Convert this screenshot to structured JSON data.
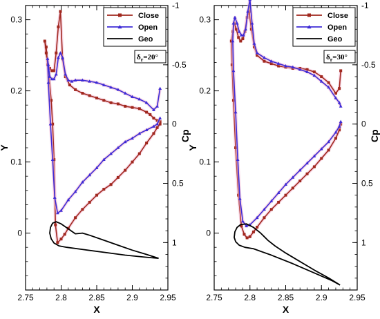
{
  "chart_data": [
    {
      "type": "line",
      "panel": "left",
      "xlabel": "X",
      "ylabel": "Y",
      "y2label": "Cp",
      "xlim": [
        2.75,
        2.95
      ],
      "ylim": [
        -0.08,
        0.32
      ],
      "y2lim": [
        1.4,
        -1.0
      ],
      "xticks": [
        "2.75",
        "2.8",
        "2.85",
        "2.9",
        "2.95"
      ],
      "yticks": [
        "0",
        "0.1",
        "0.2",
        "0.3"
      ],
      "y2ticks": [
        "-1",
        "-0.5",
        "0",
        "0.5",
        "1"
      ],
      "annotation": {
        "main": "δ",
        "sub": "r",
        "rest": "=20°"
      },
      "legend_position": "top-right",
      "series": [
        {
          "name": "Close",
          "color": "#a0281e",
          "marker": "square",
          "axis": "cp",
          "x": [
            2.939,
            2.935,
            2.93,
            2.925,
            2.92,
            2.91,
            2.9,
            2.89,
            2.88,
            2.87,
            2.86,
            2.85,
            2.84,
            2.83,
            2.82,
            2.812,
            2.806,
            2.802,
            2.799,
            2.796,
            2.793,
            2.79,
            2.787,
            2.784,
            2.781,
            2.779,
            2.777,
            2.779,
            2.783,
            2.786,
            2.788,
            2.79,
            2.792,
            2.795,
            2.8,
            2.805,
            2.81,
            2.82,
            2.83,
            2.84,
            2.85,
            2.86,
            2.87,
            2.88,
            2.89,
            2.9,
            2.91,
            2.92,
            2.93,
            2.935,
            2.939
          ],
          "y": [
            -0.02,
            -0.03,
            -0.05,
            -0.08,
            -0.1,
            -0.13,
            -0.14,
            -0.15,
            -0.17,
            -0.18,
            -0.2,
            -0.22,
            -0.24,
            -0.26,
            -0.29,
            -0.33,
            -0.4,
            -0.55,
            -0.95,
            -0.82,
            -0.6,
            -0.45,
            -0.45,
            -0.47,
            -0.5,
            -0.65,
            -0.7,
            -0.6,
            -0.4,
            -0.2,
            0.0,
            0.3,
            0.85,
            1.0,
            0.97,
            0.93,
            0.88,
            0.79,
            0.72,
            0.66,
            0.6,
            0.55,
            0.51,
            0.45,
            0.39,
            0.32,
            0.25,
            0.16,
            0.08,
            0.03,
            0.0
          ]
        },
        {
          "name": "Open",
          "color": "#3d2bd6",
          "marker": "triangle",
          "axis": "cp",
          "x": [
            2.939,
            2.935,
            2.93,
            2.92,
            2.91,
            2.9,
            2.89,
            2.88,
            2.87,
            2.86,
            2.85,
            2.84,
            2.83,
            2.82,
            2.815,
            2.81,
            2.806,
            2.802,
            2.799,
            2.796,
            2.793,
            2.79,
            2.787,
            2.784,
            2.782,
            2.781,
            2.782,
            2.785,
            2.788,
            2.791,
            2.795,
            2.8,
            2.81,
            2.82,
            2.83,
            2.84,
            2.85,
            2.86,
            2.87,
            2.88,
            2.89,
            2.9,
            2.91,
            2.92,
            2.93,
            2.935,
            2.939
          ],
          "y": [
            -0.3,
            -0.15,
            -0.12,
            -0.18,
            -0.21,
            -0.23,
            -0.26,
            -0.29,
            -0.31,
            -0.33,
            -0.35,
            -0.36,
            -0.37,
            -0.37,
            -0.36,
            -0.37,
            -0.42,
            -0.56,
            -0.6,
            -0.56,
            -0.42,
            -0.38,
            -0.38,
            -0.4,
            -0.5,
            -0.55,
            -0.35,
            0.0,
            0.3,
            0.62,
            0.75,
            0.73,
            0.64,
            0.57,
            0.49,
            0.43,
            0.37,
            0.3,
            0.25,
            0.2,
            0.15,
            0.12,
            0.08,
            0.05,
            0.02,
            0.0,
            -0.05
          ]
        },
        {
          "name": "Geo",
          "color": "#000000",
          "marker": "none",
          "axis": "y",
          "x": [
            2.937,
            2.92,
            2.9,
            2.88,
            2.86,
            2.84,
            2.83,
            2.82,
            2.81,
            2.8,
            2.793,
            2.788,
            2.785,
            2.784,
            2.786,
            2.79,
            2.797,
            2.808,
            2.83,
            2.86,
            2.89,
            2.92,
            2.937
          ],
          "y": [
            -0.0355,
            -0.03,
            -0.024,
            -0.017,
            -0.01,
            -0.003,
            0.0,
            -0.001,
            0.006,
            0.013,
            0.016,
            0.014,
            0.008,
            0.0,
            -0.008,
            -0.014,
            -0.018,
            -0.02,
            -0.023,
            -0.027,
            -0.031,
            -0.034,
            -0.0355
          ]
        }
      ]
    },
    {
      "type": "line",
      "panel": "right",
      "xlabel": "X",
      "ylabel": "Y",
      "y2label": "Cp",
      "xlim": [
        2.75,
        2.95
      ],
      "ylim": [
        -0.08,
        0.32
      ],
      "y2lim": [
        1.4,
        -1.0
      ],
      "xticks": [
        "2.75",
        "2.8",
        "2.85",
        "2.9",
        "2.95"
      ],
      "yticks": [
        "0",
        "0.1",
        "0.2",
        "0.3"
      ],
      "y2ticks": [
        "-1",
        "-0.5",
        "0",
        "0.5",
        "1"
      ],
      "annotation": {
        "main": "δ",
        "sub": "r",
        "rest": "=30°"
      },
      "legend_position": "top-right",
      "series": [
        {
          "name": "Close",
          "color": "#a0281e",
          "marker": "square",
          "axis": "cp",
          "x": [
            2.927,
            2.925,
            2.92,
            2.91,
            2.9,
            2.89,
            2.88,
            2.87,
            2.86,
            2.85,
            2.84,
            2.83,
            2.82,
            2.81,
            2.806,
            2.802,
            2.799,
            2.796,
            2.793,
            2.79,
            2.787,
            2.784,
            2.781,
            2.778,
            2.776,
            2.774,
            2.775,
            2.777,
            2.78,
            2.784,
            2.788,
            2.792,
            2.796,
            2.8,
            2.805,
            2.81,
            2.82,
            2.83,
            2.84,
            2.85,
            2.86,
            2.87,
            2.88,
            2.89,
            2.9,
            2.91,
            2.92,
            2.925,
            2.927
          ],
          "y": [
            -0.45,
            -0.3,
            -0.26,
            -0.35,
            -0.4,
            -0.44,
            -0.46,
            -0.47,
            -0.47,
            -0.48,
            -0.49,
            -0.51,
            -0.53,
            -0.58,
            -0.65,
            -0.8,
            -0.95,
            -0.9,
            -0.78,
            -0.72,
            -0.7,
            -0.73,
            -0.8,
            -0.85,
            -0.78,
            -0.7,
            -0.5,
            -0.2,
            0.2,
            0.6,
            0.86,
            0.93,
            0.96,
            0.95,
            0.91,
            0.87,
            0.79,
            0.72,
            0.66,
            0.6,
            0.54,
            0.48,
            0.42,
            0.36,
            0.29,
            0.22,
            0.12,
            0.05,
            0.0
          ]
        },
        {
          "name": "Open",
          "color": "#3d2bd6",
          "marker": "triangle",
          "axis": "cp",
          "x": [
            2.927,
            2.925,
            2.92,
            2.91,
            2.9,
            2.89,
            2.88,
            2.87,
            2.86,
            2.85,
            2.84,
            2.83,
            2.82,
            2.81,
            2.806,
            2.803,
            2.8,
            2.797,
            2.794,
            2.791,
            2.788,
            2.785,
            2.782,
            2.779,
            2.777,
            2.776,
            2.777,
            2.78,
            2.783,
            2.786,
            2.79,
            2.795,
            2.8,
            2.81,
            2.82,
            2.83,
            2.84,
            2.85,
            2.86,
            2.87,
            2.88,
            2.89,
            2.9,
            2.91,
            2.92,
            2.925,
            2.927
          ],
          "y": [
            -0.15,
            -0.18,
            -0.22,
            -0.31,
            -0.36,
            -0.41,
            -0.44,
            -0.46,
            -0.48,
            -0.49,
            -0.51,
            -0.53,
            -0.56,
            -0.6,
            -0.68,
            -0.85,
            -1.05,
            -0.95,
            -0.8,
            -0.75,
            -0.75,
            -0.78,
            -0.85,
            -0.9,
            -0.85,
            -0.7,
            -0.45,
            -0.1,
            0.3,
            0.63,
            0.82,
            0.86,
            0.85,
            0.79,
            0.72,
            0.65,
            0.58,
            0.51,
            0.45,
            0.39,
            0.33,
            0.27,
            0.21,
            0.15,
            0.07,
            0.02,
            -0.02
          ]
        },
        {
          "name": "Geo",
          "color": "#000000",
          "marker": "none",
          "axis": "y",
          "x": [
            2.926,
            2.91,
            2.89,
            2.87,
            2.85,
            2.835,
            2.825,
            2.815,
            2.805,
            2.795,
            2.787,
            2.782,
            2.779,
            2.778,
            2.78,
            2.785,
            2.793,
            2.805,
            2.83,
            2.86,
            2.89,
            2.915,
            2.926
          ],
          "y": [
            -0.073,
            -0.063,
            -0.052,
            -0.04,
            -0.028,
            -0.018,
            -0.01,
            0.0,
            0.008,
            0.013,
            0.012,
            0.008,
            0.002,
            -0.006,
            -0.012,
            -0.017,
            -0.02,
            -0.022,
            -0.031,
            -0.043,
            -0.056,
            -0.067,
            -0.073
          ]
        }
      ]
    }
  ]
}
